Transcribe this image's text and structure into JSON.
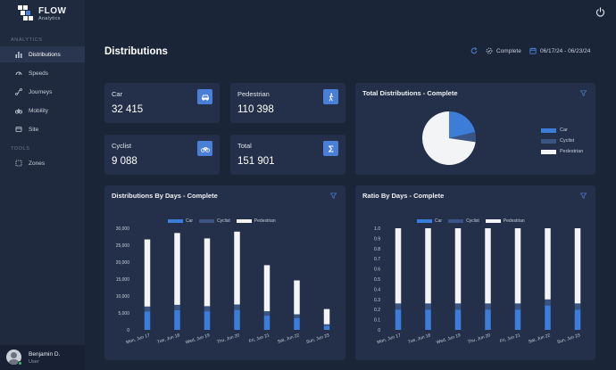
{
  "app": {
    "name": "FLOW",
    "subname": "Analytics"
  },
  "sidebar": {
    "sections": [
      {
        "label": "ANALYTICS"
      },
      {
        "label": "TOOLS"
      }
    ],
    "items": [
      {
        "label": "Distributions",
        "icon": "bars-icon",
        "active": true
      },
      {
        "label": "Speeds",
        "icon": "speed-icon"
      },
      {
        "label": "Journeys",
        "icon": "journey-icon"
      },
      {
        "label": "Mobility",
        "icon": "mobility-icon"
      },
      {
        "label": "Site",
        "icon": "site-icon"
      },
      {
        "label": "Zones",
        "icon": "zones-icon"
      }
    ],
    "user": {
      "name": "Benjamin D.",
      "role": "User"
    }
  },
  "header": {
    "title": "Distributions",
    "status": "Complete",
    "date_range": "06/17/24 - 06/23/24"
  },
  "stats": [
    {
      "label": "Car",
      "value": "32 415",
      "icon": "car-icon"
    },
    {
      "label": "Pedestrian",
      "value": "110 398",
      "icon": "pedestrian-icon"
    },
    {
      "label": "Cyclist",
      "value": "9 088",
      "icon": "bicycle-icon"
    },
    {
      "label": "Total",
      "value": "151 901",
      "icon": "sigma-icon"
    }
  ],
  "colors": {
    "car": "#3b7dd8",
    "cyclist": "#3a5584",
    "pedestrian": "#f3f4f6",
    "accent": "#4a7fd8"
  },
  "panels": {
    "pie_title": "Total Distributions - Complete",
    "days_title": "Distributions By Days - Complete",
    "ratio_title": "Ratio By Days - Complete",
    "legend": [
      "Car",
      "Cyclist",
      "Pedestrian"
    ]
  },
  "chart_data": [
    {
      "type": "pie",
      "title": "Total Distributions - Complete",
      "labels": [
        "Car",
        "Cyclist",
        "Pedestrian"
      ],
      "values": [
        32415,
        9088,
        110398
      ],
      "legend": "right"
    },
    {
      "type": "bar",
      "stacked": true,
      "title": "Distributions By Days - Complete",
      "categories": [
        "Mon, Jun 17",
        "Tue, Jun 18",
        "Wed, Jun 19",
        "Thu, Jun 20",
        "Fri, Jun 21",
        "Sat, Jun 22",
        "Sun, Jun 23"
      ],
      "series": [
        {
          "name": "Car",
          "values": [
            5400,
            5800,
            5500,
            5900,
            4200,
            3500,
            1200
          ]
        },
        {
          "name": "Cyclist",
          "values": [
            1500,
            1600,
            1500,
            1600,
            1300,
            1100,
            450
          ]
        },
        {
          "name": "Pedestrian",
          "values": [
            19800,
            21200,
            20000,
            21500,
            13600,
            10000,
            4500
          ]
        }
      ],
      "ylim": [
        0,
        30000
      ],
      "yticks": [
        "0",
        "5,000",
        "10,000",
        "15,000",
        "20,000",
        "25,000",
        "30,000"
      ],
      "legend": "top-center"
    },
    {
      "type": "bar",
      "stacked": true,
      "title": "Ratio By Days - Complete",
      "categories": [
        "Mon, Jun 17",
        "Tue, Jun 18",
        "Wed, Jun 19",
        "Thu, Jun 20",
        "Fri, Jun 21",
        "Sat, Jun 22",
        "Sun, Jun 23"
      ],
      "series": [
        {
          "name": "Car",
          "values": [
            0.2,
            0.2,
            0.2,
            0.2,
            0.2,
            0.24,
            0.2
          ]
        },
        {
          "name": "Cyclist",
          "values": [
            0.06,
            0.06,
            0.06,
            0.06,
            0.06,
            0.06,
            0.06
          ]
        },
        {
          "name": "Pedestrian",
          "values": [
            0.74,
            0.74,
            0.74,
            0.74,
            0.74,
            0.7,
            0.74
          ]
        }
      ],
      "ylim": [
        0,
        1
      ],
      "yticks": [
        "0",
        "0.1",
        "0.2",
        "0.3",
        "0.4",
        "0.5",
        "0.6",
        "0.7",
        "0.8",
        "0.9",
        "1.0"
      ],
      "legend": "top-center"
    }
  ]
}
